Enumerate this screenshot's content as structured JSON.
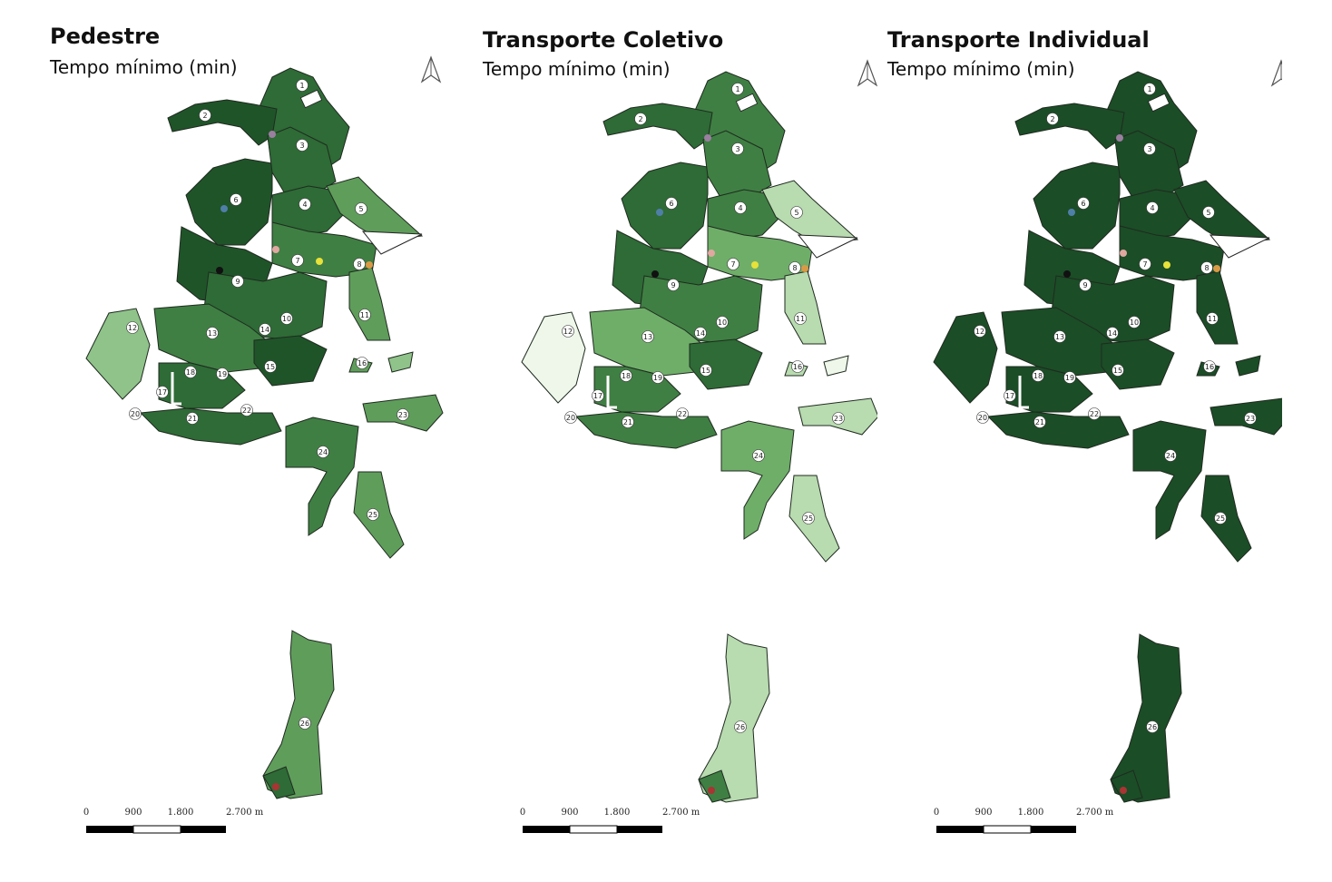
{
  "colors": {
    "darkest": "#1b4d27",
    "dark": "#2e6b36",
    "mid": "#4f8f50",
    "light": "#8fc38a",
    "lighter": "#c7e3be",
    "lightest": "#f3f9ef"
  },
  "panels": [
    {
      "title": "Pedestre",
      "subtitle": "Tempo mínimo (min)",
      "palette": [
        "#2e6b36",
        "#3f7f43",
        "#1f5429",
        "#5f9d5b",
        "#8fc38a"
      ]
    },
    {
      "title": "Transporte Coletivo",
      "subtitle": "Tempo mínimo (min)",
      "palette": [
        "#3f7f43",
        "#6fae69",
        "#2e6b36",
        "#b8dbb0",
        "#eef7ea"
      ]
    },
    {
      "title": "Transporte Individual",
      "subtitle": "Tempo mínimo (min)",
      "palette": [
        "#1b4d27",
        "#1b4d27",
        "#1b4d27",
        "#1b4d27",
        "#1b4d27"
      ]
    }
  ],
  "district_labels": [
    "1",
    "2",
    "3",
    "4",
    "5",
    "6",
    "7",
    "8",
    "9",
    "10",
    "11",
    "12",
    "13",
    "14",
    "15",
    "16",
    "17",
    "18",
    "19",
    "20",
    "21",
    "22",
    "23",
    "24",
    "25",
    "26"
  ],
  "scalebar": {
    "ticks": [
      "0",
      "900",
      "1.800",
      "2.700 m"
    ]
  },
  "north_icon": "north-arrow-icon"
}
